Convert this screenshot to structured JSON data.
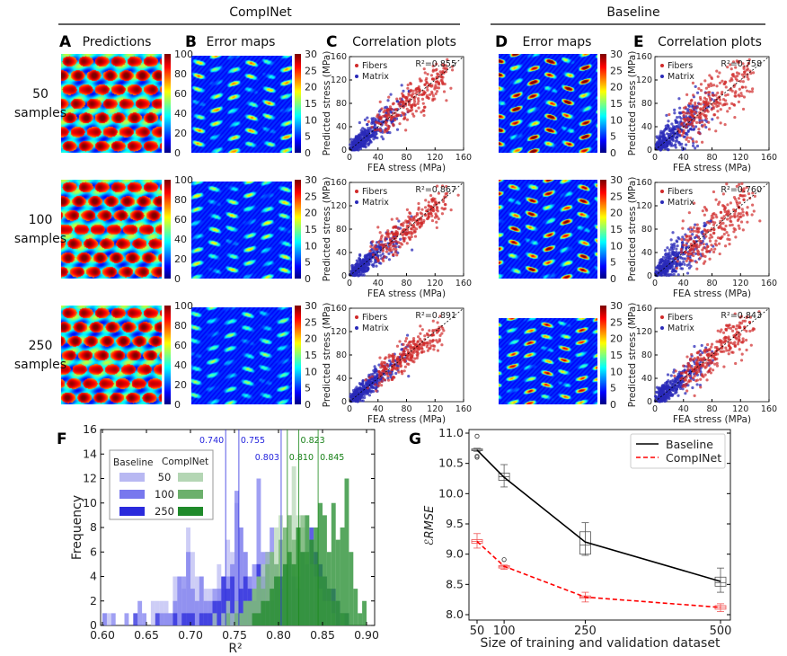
{
  "groups": {
    "compinet": "CompINet",
    "baseline": "Baseline"
  },
  "panel_letters": {
    "A": "A",
    "B": "B",
    "C": "C",
    "D": "D",
    "E": "E",
    "F": "F",
    "G": "G"
  },
  "panel_titles": {
    "A": "Predictions",
    "B": "Error maps",
    "C": "Correlation plots",
    "D": "Error maps",
    "E": "Correlation plots"
  },
  "rows": [
    {
      "n": "50",
      "label": "samples"
    },
    {
      "n": "100",
      "label": "samples"
    },
    {
      "n": "250",
      "label": "samples"
    }
  ],
  "colorbars": {
    "predictions": {
      "ticks": [
        "0",
        "20",
        "40",
        "60",
        "80",
        "100"
      ],
      "colormap": "jet"
    },
    "error": {
      "ticks": [
        "0",
        "5",
        "10",
        "15",
        "20",
        "25",
        "30"
      ],
      "colormap": "jet"
    }
  },
  "colors": {
    "fibers": "#cc2222",
    "matrix": "#2a2ab8",
    "baseline_hist": "#3a3ae0",
    "compinet_hist": "#1a8a1a",
    "baseline_line": "#000000",
    "compinet_line": "#ff0000"
  },
  "chart_data": [
    {
      "type": "scatter",
      "panel": "C",
      "xlabel": "FEA stress (MPa)",
      "ylabel": "Predicted stress (MPa)",
      "xlim": [
        0,
        160
      ],
      "ylim": [
        0,
        160
      ],
      "xticks": [
        "0",
        "40",
        "80",
        "120",
        "160"
      ],
      "yticks": [
        "0",
        "40",
        "80",
        "120",
        "160"
      ],
      "legend": [
        "Fibers",
        "Matrix"
      ],
      "legend_position": "top-left",
      "r2_labels": [
        "R²=0.855",
        "R²=0.867",
        "R²=0.891"
      ]
    },
    {
      "type": "scatter",
      "panel": "E",
      "xlabel": "FEA stress (MPa)",
      "ylabel": "Predicted stress (MPa)",
      "xlim": [
        0,
        160
      ],
      "ylim": [
        0,
        160
      ],
      "xticks": [
        "0",
        "40",
        "80",
        "120",
        "160"
      ],
      "yticks": [
        "0",
        "40",
        "80",
        "120",
        "160"
      ],
      "legend": [
        "Fibers",
        "Matrix"
      ],
      "legend_position": "top-left",
      "r2_labels": [
        "R²=0.758",
        "R²=0.760",
        "R²=0.843"
      ]
    },
    {
      "type": "bar",
      "panel": "F",
      "subtype": "histogram",
      "xlabel": "R²",
      "ylabel": "Frequency",
      "xlim": [
        0.6,
        0.9
      ],
      "ylim": [
        0,
        16
      ],
      "xticks": [
        "0.60",
        "0.65",
        "0.70",
        "0.75",
        "0.80",
        "0.85",
        "0.90"
      ],
      "yticks": [
        "0",
        "2",
        "4",
        "6",
        "8",
        "10",
        "12",
        "14",
        "16"
      ],
      "bin_start": 0.6,
      "bin_width": 0.005,
      "legend_headers": [
        "Baseline",
        "CompINet"
      ],
      "legend_rows": [
        "50",
        "100",
        "250"
      ],
      "legend_position": "top-left",
      "series": [
        {
          "group": "Baseline",
          "size": "50",
          "mean": 0.74,
          "mean_label": "0.740",
          "color": "#b8b8f2",
          "values": [
            1,
            1,
            0,
            0,
            0,
            0,
            0,
            0,
            0,
            0,
            0,
            2,
            2,
            2,
            2,
            1,
            4,
            4,
            3,
            8,
            6,
            4,
            4,
            3,
            3,
            2,
            5,
            3,
            7,
            6,
            10,
            8,
            6,
            4,
            3,
            5,
            5,
            3,
            2,
            4,
            3,
            2,
            1,
            1,
            1,
            0,
            0,
            0,
            0,
            0,
            0,
            0,
            0,
            0,
            0,
            0,
            0,
            0,
            0,
            0
          ]
        },
        {
          "group": "Baseline",
          "size": "100",
          "mean": 0.755,
          "mean_label": "0.755",
          "color": "#7878ee",
          "values": [
            1,
            0,
            1,
            0,
            0,
            1,
            0,
            0,
            2,
            1,
            0,
            0,
            0,
            1,
            1,
            1,
            2,
            4,
            4,
            6,
            3,
            2,
            4,
            2,
            2,
            3,
            3,
            4,
            4,
            5,
            11,
            8,
            6,
            4,
            5,
            12,
            6,
            2,
            8,
            5,
            4,
            3,
            2,
            2,
            4,
            3,
            1,
            2,
            1,
            1,
            0,
            0,
            0,
            0,
            0,
            0,
            0,
            0,
            0,
            0
          ]
        },
        {
          "group": "Baseline",
          "size": "250",
          "mean": 0.803,
          "mean_label": "0.803",
          "color": "#2a2adc",
          "values": [
            0,
            0,
            0,
            0,
            0,
            0,
            0,
            1,
            0,
            0,
            0,
            0,
            1,
            0,
            0,
            0,
            1,
            0,
            1,
            1,
            1,
            0,
            1,
            1,
            1,
            2,
            2,
            4,
            3,
            4,
            2,
            3,
            4,
            3,
            2,
            5,
            4,
            6,
            2,
            4,
            3,
            5,
            5,
            4,
            3,
            6,
            5,
            8,
            6,
            5,
            4,
            3,
            3,
            2,
            1,
            1,
            0,
            0,
            0,
            0
          ]
        },
        {
          "group": "CompINet",
          "size": "50",
          "mean": 0.81,
          "mean_label": "0.810",
          "color": "#b4d6b4",
          "values": [
            0,
            0,
            0,
            0,
            0,
            0,
            0,
            0,
            0,
            0,
            0,
            0,
            0,
            0,
            0,
            0,
            0,
            0,
            0,
            0,
            0,
            0,
            0,
            0,
            0,
            1,
            0,
            1,
            2,
            1,
            2,
            1,
            2,
            2,
            3,
            4,
            5,
            6,
            6,
            8,
            9,
            8,
            9,
            13,
            9,
            8,
            6,
            5,
            4,
            3,
            2,
            2,
            1,
            0,
            1,
            0,
            0,
            0,
            0,
            0
          ]
        },
        {
          "group": "CompINet",
          "size": "100",
          "mean": 0.823,
          "mean_label": "0.823",
          "color": "#6cb06c",
          "values": [
            0,
            0,
            0,
            0,
            0,
            0,
            0,
            0,
            0,
            0,
            0,
            0,
            0,
            0,
            0,
            0,
            0,
            0,
            0,
            0,
            0,
            0,
            0,
            0,
            0,
            0,
            0,
            0,
            1,
            0,
            1,
            1,
            2,
            2,
            3,
            4,
            3,
            5,
            6,
            5,
            7,
            8,
            9,
            7,
            8,
            9,
            6,
            7,
            5,
            4,
            4,
            3,
            2,
            2,
            1,
            1,
            0,
            0,
            0,
            0
          ]
        },
        {
          "group": "CompINet",
          "size": "250",
          "mean": 0.845,
          "mean_label": "0.845",
          "color": "#1f8a2a",
          "values": [
            0,
            0,
            0,
            0,
            0,
            0,
            0,
            0,
            0,
            0,
            0,
            0,
            0,
            0,
            0,
            0,
            0,
            0,
            0,
            0,
            0,
            0,
            0,
            0,
            0,
            0,
            0,
            0,
            0,
            0,
            0,
            0,
            0,
            0,
            1,
            1,
            2,
            2,
            3,
            4,
            4,
            5,
            6,
            5,
            8,
            6,
            9,
            7,
            8,
            10,
            9,
            6,
            10,
            7,
            8,
            12,
            6,
            3,
            1,
            2
          ]
        }
      ]
    },
    {
      "type": "line",
      "panel": "G",
      "xlabel": "Size of training and validation dataset",
      "ylabel": "ℰRMSE",
      "x": [
        50,
        100,
        250,
        500
      ],
      "xticks": [
        "50",
        "100",
        "250",
        "500"
      ],
      "yticks": [
        "8.0",
        "8.5",
        "9.0",
        "9.5",
        "10.0",
        "10.5",
        "11.0"
      ],
      "ylim": [
        7.92,
        11.05
      ],
      "legend_position": "top-right",
      "series": [
        {
          "name": "Baseline",
          "style": "solid",
          "color": "#000000",
          "values": [
            10.72,
            10.27,
            9.2,
            8.55
          ],
          "boxes": [
            {
              "q1": 10.71,
              "median": 10.72,
              "q3": 10.74,
              "whisker_low": 10.7,
              "whisker_high": 10.75,
              "outliers": [
                10.95,
                10.62,
                10.6
              ]
            },
            {
              "q1": 10.22,
              "median": 10.28,
              "q3": 10.34,
              "whisker_low": 10.11,
              "whisker_high": 10.48,
              "outliers": []
            },
            {
              "q1": 9.0,
              "median": 9.15,
              "q3": 9.37,
              "whisker_low": 8.98,
              "whisker_high": 9.52,
              "outliers": []
            },
            {
              "q1": 8.47,
              "median": 8.53,
              "q3": 8.62,
              "whisker_low": 8.37,
              "whisker_high": 8.77,
              "outliers": []
            }
          ]
        },
        {
          "name": "CompINet",
          "style": "dashed",
          "color": "#ff0000",
          "values": [
            9.21,
            8.8,
            8.29,
            8.12
          ],
          "boxes": [
            {
              "q1": 9.18,
              "median": 9.21,
              "q3": 9.24,
              "whisker_low": 9.1,
              "whisker_high": 9.34,
              "outliers": []
            },
            {
              "q1": 8.77,
              "median": 8.79,
              "q3": 8.81,
              "whisker_low": 8.75,
              "whisker_high": 8.82,
              "outliers": [
                8.91
              ]
            },
            {
              "q1": 8.27,
              "median": 8.29,
              "q3": 8.31,
              "whisker_low": 8.21,
              "whisker_high": 8.37,
              "outliers": []
            },
            {
              "q1": 8.09,
              "median": 8.12,
              "q3": 8.15,
              "whisker_low": 8.05,
              "whisker_high": 8.18,
              "outliers": []
            }
          ]
        }
      ]
    }
  ]
}
